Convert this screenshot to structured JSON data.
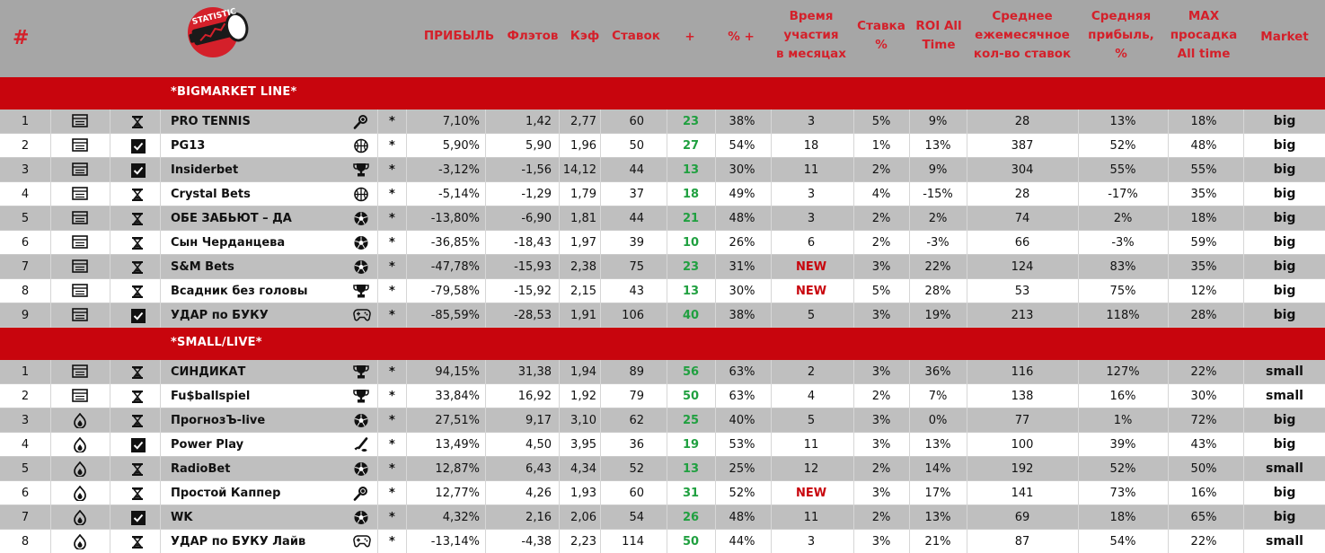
{
  "header": {
    "hash": "#",
    "logo_text": "STATISTIC",
    "columns": {
      "profit": "ПРИБЫЛЬ",
      "flats": "Флэтов",
      "kef": "Кэф",
      "bets": "Ставок",
      "plus": "+",
      "pct_plus": "% +",
      "time": "Время\nучастия\nв месяцах",
      "stake": "Ставка\n%",
      "roi": "ROI All\nTime",
      "avg_bets": "Среднее\nежемесячное\nкол-во ставок",
      "avg_profit": "Средняя\nприбыль,\n%",
      "max_dd": "MAX\nпросадка\nAll time",
      "market": "Market"
    }
  },
  "colors": {
    "header_bg": "#a6a6a6",
    "section_bg": "#c8050d",
    "header_text": "#d4202a",
    "plus_green": "#20a040",
    "new_red": "#c8050d",
    "row_grey": "#bfbfbf"
  },
  "sections": [
    {
      "title": "*BIGMARKET LINE*",
      "rows": [
        {
          "num": "1",
          "type": "monitor-icon",
          "status": "hourglass-icon",
          "name": "PRO TENNIS",
          "sport": "tennis-icon",
          "star": "*",
          "profit": "7,10%",
          "flats": "1,42",
          "kef": "2,77",
          "bets": "60",
          "plus": "23",
          "pct_plus": "38%",
          "time": "3",
          "stake": "5%",
          "roi": "9%",
          "avg_bets": "28",
          "avg_profit": "13%",
          "max_dd": "18%",
          "market": "big"
        },
        {
          "num": "2",
          "type": "monitor-icon",
          "status": "checkbox-icon",
          "name": "PG13",
          "sport": "basketball-icon",
          "star": "*",
          "profit": "5,90%",
          "flats": "5,90",
          "kef": "1,96",
          "bets": "50",
          "plus": "27",
          "pct_plus": "54%",
          "time": "18",
          "stake": "1%",
          "roi": "13%",
          "avg_bets": "387",
          "avg_profit": "52%",
          "max_dd": "48%",
          "market": "big"
        },
        {
          "num": "3",
          "type": "monitor-icon",
          "status": "checkbox-icon",
          "name": "Insiderbet",
          "sport": "trophy-icon",
          "star": "*",
          "profit": "-3,12%",
          "flats": "-1,56",
          "kef": "14,12",
          "bets": "44",
          "plus": "13",
          "pct_plus": "30%",
          "time": "11",
          "stake": "2%",
          "roi": "9%",
          "avg_bets": "304",
          "avg_profit": "55%",
          "max_dd": "55%",
          "market": "big"
        },
        {
          "num": "4",
          "type": "monitor-icon",
          "status": "hourglass-icon",
          "name": "Crystal Bets",
          "sport": "basketball-icon",
          "star": "*",
          "profit": "-5,14%",
          "flats": "-1,29",
          "kef": "1,79",
          "bets": "37",
          "plus": "18",
          "pct_plus": "49%",
          "time": "3",
          "stake": "4%",
          "roi": "-15%",
          "avg_bets": "28",
          "avg_profit": "-17%",
          "max_dd": "35%",
          "market": "big"
        },
        {
          "num": "5",
          "type": "monitor-icon",
          "status": "hourglass-icon",
          "name": "ОБЕ ЗАБЬЮТ – ДА",
          "sport": "football-icon",
          "star": "*",
          "profit": "-13,80%",
          "flats": "-6,90",
          "kef": "1,81",
          "bets": "44",
          "plus": "21",
          "pct_plus": "48%",
          "time": "3",
          "stake": "2%",
          "roi": "2%",
          "avg_bets": "74",
          "avg_profit": "2%",
          "max_dd": "18%",
          "market": "big"
        },
        {
          "num": "6",
          "type": "monitor-icon",
          "status": "hourglass-icon",
          "name": "Сын Черданцева",
          "sport": "football-icon",
          "star": "*",
          "profit": "-36,85%",
          "flats": "-18,43",
          "kef": "1,97",
          "bets": "39",
          "plus": "10",
          "pct_plus": "26%",
          "time": "6",
          "stake": "2%",
          "roi": "-3%",
          "avg_bets": "66",
          "avg_profit": "-3%",
          "max_dd": "59%",
          "market": "big"
        },
        {
          "num": "7",
          "type": "monitor-icon",
          "status": "hourglass-icon",
          "name": "S&M Bets",
          "sport": "football-icon",
          "star": "*",
          "profit": "-47,78%",
          "flats": "-15,93",
          "kef": "2,38",
          "bets": "75",
          "plus": "23",
          "pct_plus": "31%",
          "time": "NEW",
          "stake": "3%",
          "roi": "22%",
          "avg_bets": "124",
          "avg_profit": "83%",
          "max_dd": "35%",
          "market": "big"
        },
        {
          "num": "8",
          "type": "monitor-icon",
          "status": "hourglass-icon",
          "name": "Всадник без головы",
          "sport": "trophy-icon",
          "star": "*",
          "profit": "-79,58%",
          "flats": "-15,92",
          "kef": "2,15",
          "bets": "43",
          "plus": "13",
          "pct_plus": "30%",
          "time": "NEW",
          "stake": "5%",
          "roi": "28%",
          "avg_bets": "53",
          "avg_profit": "75%",
          "max_dd": "12%",
          "market": "big"
        },
        {
          "num": "9",
          "type": "monitor-icon",
          "status": "checkbox-icon",
          "name": "УДАР по БУКУ",
          "sport": "gamepad-icon",
          "star": "*",
          "profit": "-85,59%",
          "flats": "-28,53",
          "kef": "1,91",
          "bets": "106",
          "plus": "40",
          "pct_plus": "38%",
          "time": "5",
          "stake": "3%",
          "roi": "19%",
          "avg_bets": "213",
          "avg_profit": "118%",
          "max_dd": "28%",
          "market": "big"
        }
      ]
    },
    {
      "title": "*SMALL/LIVE*",
      "rows": [
        {
          "num": "1",
          "type": "monitor-icon",
          "status": "hourglass-icon",
          "name": "СИНДИКАТ",
          "sport": "trophy-icon",
          "star": "*",
          "profit": "94,15%",
          "flats": "31,38",
          "kef": "1,94",
          "bets": "89",
          "plus": "56",
          "pct_plus": "63%",
          "time": "2",
          "stake": "3%",
          "roi": "36%",
          "avg_bets": "116",
          "avg_profit": "127%",
          "max_dd": "22%",
          "market": "small"
        },
        {
          "num": "2",
          "type": "monitor-icon",
          "status": "hourglass-icon",
          "name": "Fu$ballspiel",
          "sport": "trophy-icon",
          "star": "*",
          "profit": "33,84%",
          "flats": "16,92",
          "kef": "1,92",
          "bets": "79",
          "plus": "50",
          "pct_plus": "63%",
          "time": "4",
          "stake": "2%",
          "roi": "7%",
          "avg_bets": "138",
          "avg_profit": "16%",
          "max_dd": "30%",
          "market": "small"
        },
        {
          "num": "3",
          "type": "flame-icon",
          "status": "hourglass-icon",
          "name": "ПрогнозЪ-live",
          "sport": "football-icon",
          "star": "*",
          "profit": "27,51%",
          "flats": "9,17",
          "kef": "3,10",
          "bets": "62",
          "plus": "25",
          "pct_plus": "40%",
          "time": "5",
          "stake": "3%",
          "roi": "0%",
          "avg_bets": "77",
          "avg_profit": "1%",
          "max_dd": "72%",
          "market": "big"
        },
        {
          "num": "4",
          "type": "flame-icon",
          "status": "checkbox-icon",
          "name": "Power Play",
          "sport": "hockey-icon",
          "star": "*",
          "profit": "13,49%",
          "flats": "4,50",
          "kef": "3,95",
          "bets": "36",
          "plus": "19",
          "pct_plus": "53%",
          "time": "11",
          "stake": "3%",
          "roi": "13%",
          "avg_bets": "100",
          "avg_profit": "39%",
          "max_dd": "43%",
          "market": "big"
        },
        {
          "num": "5",
          "type": "flame-icon",
          "status": "hourglass-icon",
          "name": "RadioBet",
          "sport": "football-icon",
          "star": "*",
          "profit": "12,87%",
          "flats": "6,43",
          "kef": "4,34",
          "bets": "52",
          "plus": "13",
          "pct_plus": "25%",
          "time": "12",
          "stake": "2%",
          "roi": "14%",
          "avg_bets": "192",
          "avg_profit": "52%",
          "max_dd": "50%",
          "market": "small"
        },
        {
          "num": "6",
          "type": "flame-icon",
          "status": "hourglass-icon",
          "name": "Простой Каппер",
          "sport": "tennis-icon",
          "star": "*",
          "profit": "12,77%",
          "flats": "4,26",
          "kef": "1,93",
          "bets": "60",
          "plus": "31",
          "pct_plus": "52%",
          "time": "NEW",
          "stake": "3%",
          "roi": "17%",
          "avg_bets": "141",
          "avg_profit": "73%",
          "max_dd": "16%",
          "market": "big"
        },
        {
          "num": "7",
          "type": "flame-icon",
          "status": "checkbox-icon",
          "name": "WK",
          "sport": "football-icon",
          "star": "*",
          "profit": "4,32%",
          "flats": "2,16",
          "kef": "2,06",
          "bets": "54",
          "plus": "26",
          "pct_plus": "48%",
          "time": "11",
          "stake": "2%",
          "roi": "13%",
          "avg_bets": "69",
          "avg_profit": "18%",
          "max_dd": "65%",
          "market": "big"
        },
        {
          "num": "8",
          "type": "flame-icon",
          "status": "hourglass-icon",
          "name": "УДАР по БУКУ Лайв",
          "sport": "gamepad-icon",
          "star": "*",
          "profit": "-13,14%",
          "flats": "-4,38",
          "kef": "2,23",
          "bets": "114",
          "plus": "50",
          "pct_plus": "44%",
          "time": "3",
          "stake": "3%",
          "roi": "21%",
          "avg_bets": "87",
          "avg_profit": "54%",
          "max_dd": "22%",
          "market": "small"
        }
      ]
    }
  ]
}
